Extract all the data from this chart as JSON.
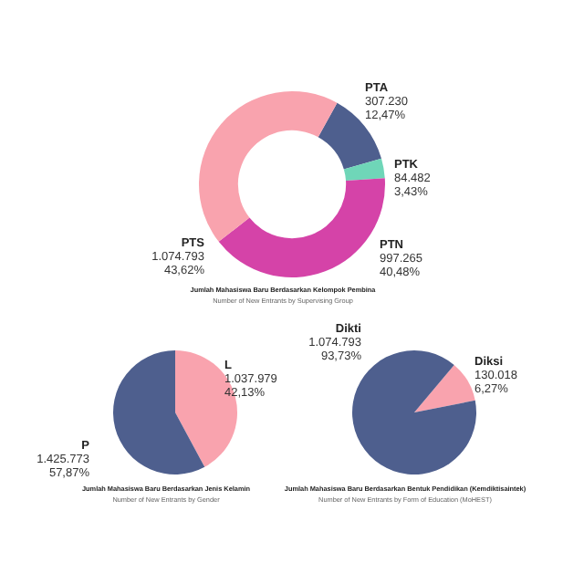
{
  "chart_data": [
    {
      "type": "donut",
      "title": "Jumlah Mahasiswa Baru Berdasarkan Kelompok Pembina",
      "subtitle": "Number of New Entrants by Supervising Group",
      "categories": [
        "PTA",
        "PTK",
        "PTN",
        "PTS"
      ],
      "values": [
        307230,
        84482,
        997265,
        1074793
      ],
      "colors": [
        "#4e5f8e",
        "#6fd6b8",
        "#d543a8",
        "#f9a3ae"
      ],
      "value_labels": [
        "307.230\n12,47%",
        "84.482\n3,43%",
        "997.265\n40,48%",
        "1.074.793\n43,62%"
      ],
      "legend": false
    },
    {
      "type": "pie",
      "title": "Jumlah Mahasiswa Baru Berdasarkan Jenis Kelamin",
      "subtitle": "Number of New Entrants by Gender",
      "categories": [
        "L",
        "P"
      ],
      "values": [
        1037979,
        1425773
      ],
      "colors": [
        "#f9a3ae",
        "#4e5f8e"
      ],
      "value_labels": [
        "1.037.979\n42,13%",
        "1.425.773\n57,87%"
      ],
      "legend": false
    },
    {
      "type": "pie",
      "title": "Jumlah Mahasiswa Baru Berdasarkan Bentuk Pendidikan (Kemdiktisaintek)",
      "subtitle": "Number of New Entrants by Form of Education (MoHEST)",
      "categories": [
        "Diksi",
        "Dikti"
      ],
      "values": [
        130018,
        1074793
      ],
      "colors": [
        "#f9a3ae",
        "#4e5f8e"
      ],
      "value_labels": [
        "130.018\n6,27%",
        "1.074.793\n93,73%"
      ],
      "legend": false
    }
  ]
}
